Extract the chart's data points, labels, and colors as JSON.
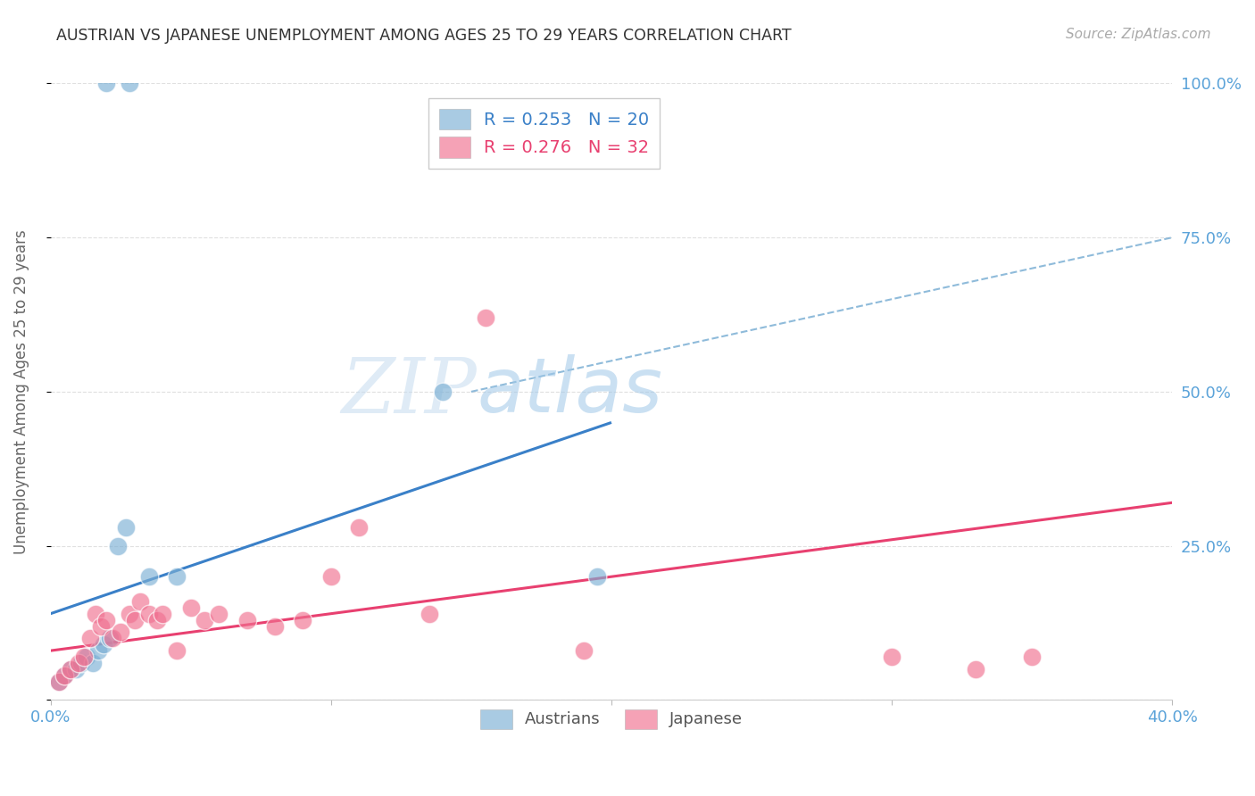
{
  "title": "AUSTRIAN VS JAPANESE UNEMPLOYMENT AMONG AGES 25 TO 29 YEARS CORRELATION CHART",
  "source": "Source: ZipAtlas.com",
  "ylabel": "Unemployment Among Ages 25 to 29 years",
  "xlim": [
    0,
    40
  ],
  "ylim": [
    0,
    100
  ],
  "austrians_x": [
    2.0,
    2.8,
    0.3,
    0.5,
    0.7,
    0.9,
    1.1,
    1.3,
    1.5,
    1.7,
    1.9,
    2.1,
    2.4,
    2.7,
    3.5,
    4.5,
    14.0,
    19.5
  ],
  "austrians_y": [
    100,
    100,
    3,
    4,
    5,
    5,
    6,
    7,
    6,
    8,
    9,
    10,
    25,
    28,
    20,
    20,
    50,
    20
  ],
  "japanese_x": [
    0.3,
    0.5,
    0.7,
    1.0,
    1.2,
    1.4,
    1.6,
    1.8,
    2.0,
    2.2,
    2.5,
    2.8,
    3.0,
    3.2,
    3.5,
    3.8,
    4.0,
    4.5,
    5.0,
    5.5,
    6.0,
    7.0,
    8.0,
    9.0,
    10.0,
    11.0,
    13.5,
    15.5,
    19.0,
    30.0,
    33.0,
    35.0
  ],
  "japanese_y": [
    3,
    4,
    5,
    6,
    7,
    10,
    14,
    12,
    13,
    10,
    11,
    14,
    13,
    16,
    14,
    13,
    14,
    8,
    15,
    13,
    14,
    13,
    12,
    13,
    20,
    28,
    14,
    62,
    8,
    7,
    5,
    7
  ],
  "austrians_color": "#7bafd4",
  "japanese_color": "#f07090",
  "title_color": "#333333",
  "axis_color": "#5ba3d9",
  "grid_color": "#cccccc",
  "watermark_zip": "ZIP",
  "watermark_atlas": "atlas",
  "aus_trend_x0": 0,
  "aus_trend_y0": 14,
  "aus_trend_x1": 20,
  "aus_trend_y1": 45,
  "jap_trend_x0": 0,
  "jap_trend_y0": 8,
  "jap_trend_x1": 40,
  "jap_trend_y1": 32,
  "dash_x0": 15,
  "dash_y0": 50,
  "dash_x1": 40,
  "dash_y1": 75
}
